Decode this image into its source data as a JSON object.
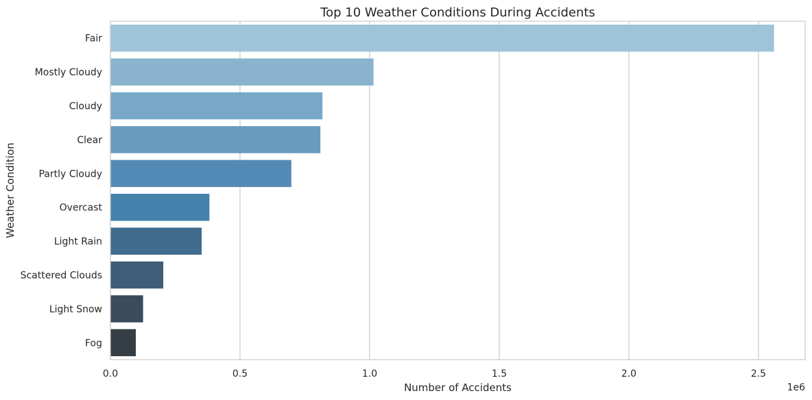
{
  "chart_data": {
    "type": "bar",
    "orientation": "horizontal",
    "title": "Top 10 Weather Conditions During Accidents",
    "xlabel": "Number of Accidents",
    "ylabel": "Weather Condition",
    "x_offset_text": "1e6",
    "categories": [
      "Fair",
      "Mostly Cloudy",
      "Cloudy",
      "Clear",
      "Partly Cloudy",
      "Overcast",
      "Light Rain",
      "Scattered Clouds",
      "Light Snow",
      "Fog"
    ],
    "values": [
      2560000,
      1015000,
      818000,
      810000,
      698000,
      382000,
      352000,
      204000,
      126000,
      98000
    ],
    "xlim": [
      0,
      2680000
    ],
    "xticks": [
      0,
      500000,
      1000000,
      1500000,
      2000000,
      2500000
    ],
    "xtick_labels": [
      "0.0",
      "0.5",
      "1.0",
      "1.5",
      "2.0",
      "2.5"
    ],
    "grid": "vertical",
    "colors": [
      "#9fc3d9",
      "#8ab4ce",
      "#78a8c9",
      "#689bc0",
      "#548bb6",
      "#4681ab",
      "#406d8e",
      "#3f5d77",
      "#3b4b5b",
      "#343e44"
    ]
  }
}
